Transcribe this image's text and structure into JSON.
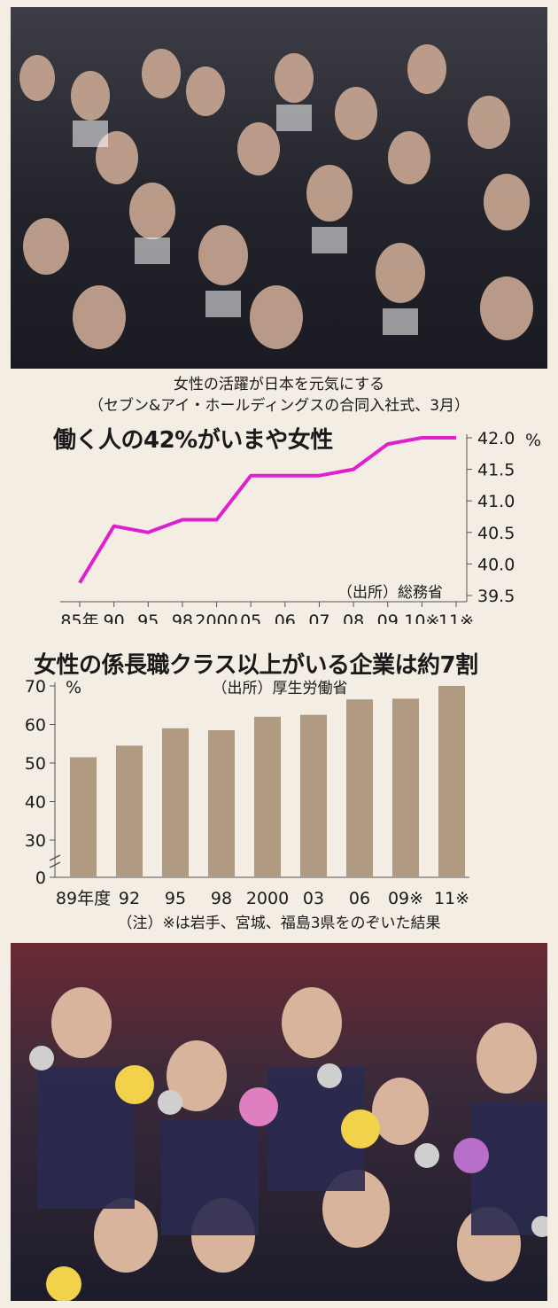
{
  "photo_top_caption": {
    "line1": "女性の活躍が日本を元気にする",
    "line2": "（セブン&アイ・ホールディングスの合同入社式、3月）"
  },
  "chart_data": [
    {
      "type": "line",
      "title": "働く人の42%がいまや女性",
      "source": "（出所）総務省",
      "x_labels": [
        "85年",
        "90",
        "95",
        "98",
        "2000",
        "05",
        "06",
        "07",
        "08",
        "09",
        "10※",
        "11※"
      ],
      "x": [
        "1985",
        "1990",
        "1995",
        "1998",
        "2000",
        "2005",
        "2006",
        "2007",
        "2008",
        "2009",
        "2010",
        "2011"
      ],
      "values": [
        39.7,
        40.6,
        40.5,
        40.7,
        40.7,
        41.4,
        41.4,
        41.4,
        41.5,
        41.9,
        42.0,
        42.0
      ],
      "y_ticks": [
        "42.0",
        "41.5",
        "41.0",
        "40.5",
        "40.0",
        "39.5"
      ],
      "y_unit": "%",
      "ylim": [
        39.5,
        42.0
      ],
      "color": "#e020d0"
    },
    {
      "type": "bar",
      "title": "女性の係長職クラス以上がいる企業は約7割",
      "source": "（出所）厚生労働省",
      "categories": [
        "1989",
        "1992",
        "1995",
        "1998",
        "2000",
        "2003",
        "2006",
        "2009",
        "2011"
      ],
      "x_labels": [
        "89年度",
        "92",
        "95",
        "98",
        "2000",
        "03",
        "06",
        "09※",
        "11※"
      ],
      "values": [
        51.5,
        54.5,
        59,
        58.5,
        62,
        62.5,
        66.5,
        66.7,
        70
      ],
      "y_ticks": [
        "70",
        "60",
        "50",
        "40",
        "30",
        "0"
      ],
      "y_unit": "%",
      "ylim": [
        0,
        70
      ],
      "axis_break": true,
      "color": "#b09a82"
    }
  ],
  "note": "（注）※は岩手、宮城、福島3県をのぞいた結果"
}
